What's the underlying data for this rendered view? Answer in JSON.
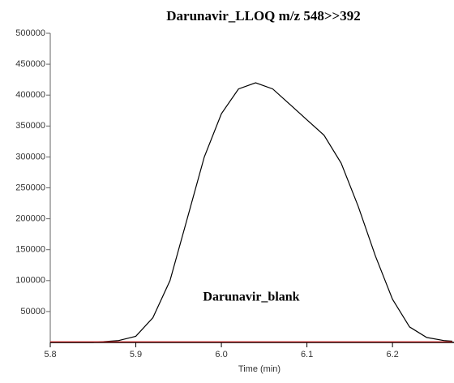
{
  "chart_data": {
    "type": "line",
    "title": "Darunavir_LLOQ  m/z 548>>392",
    "annotation": "Darunavir_blank",
    "x_label": "Time (min)",
    "x": [
      5.8,
      5.85,
      5.88,
      5.9,
      5.92,
      5.94,
      5.96,
      5.98,
      6.0,
      6.02,
      6.04,
      6.06,
      6.08,
      6.1,
      6.12,
      6.14,
      6.16,
      6.18,
      6.2,
      6.22,
      6.24,
      6.26,
      6.27
    ],
    "series": [
      {
        "name": "Darunavir_LLOQ",
        "color": "#000000",
        "values": [
          0,
          0,
          3000,
          10000,
          40000,
          100000,
          200000,
          300000,
          370000,
          410000,
          420000,
          410000,
          385000,
          360000,
          335000,
          290000,
          220000,
          140000,
          70000,
          25000,
          8000,
          3000,
          2000
        ]
      },
      {
        "name": "Darunavir_blank",
        "color": "#cc2222",
        "values": [
          1000,
          1000,
          1000,
          1000,
          1000,
          1000,
          1000,
          1000,
          1000,
          1000,
          1000,
          1000,
          1000,
          1000,
          1000,
          1000,
          1000,
          1000,
          1000,
          1000,
          1000,
          1000,
          1000
        ]
      }
    ],
    "xlim": [
      5.8,
      6.27
    ],
    "xticks": [
      5.8,
      5.9,
      {
        "value": 6,
        "label": "6.0"
      },
      6.1,
      6.2
    ],
    "ylim": [
      0,
      500000
    ],
    "yticks": [
      50000,
      100000,
      150000,
      200000,
      250000,
      300000,
      350000,
      400000,
      450000,
      500000
    ]
  }
}
